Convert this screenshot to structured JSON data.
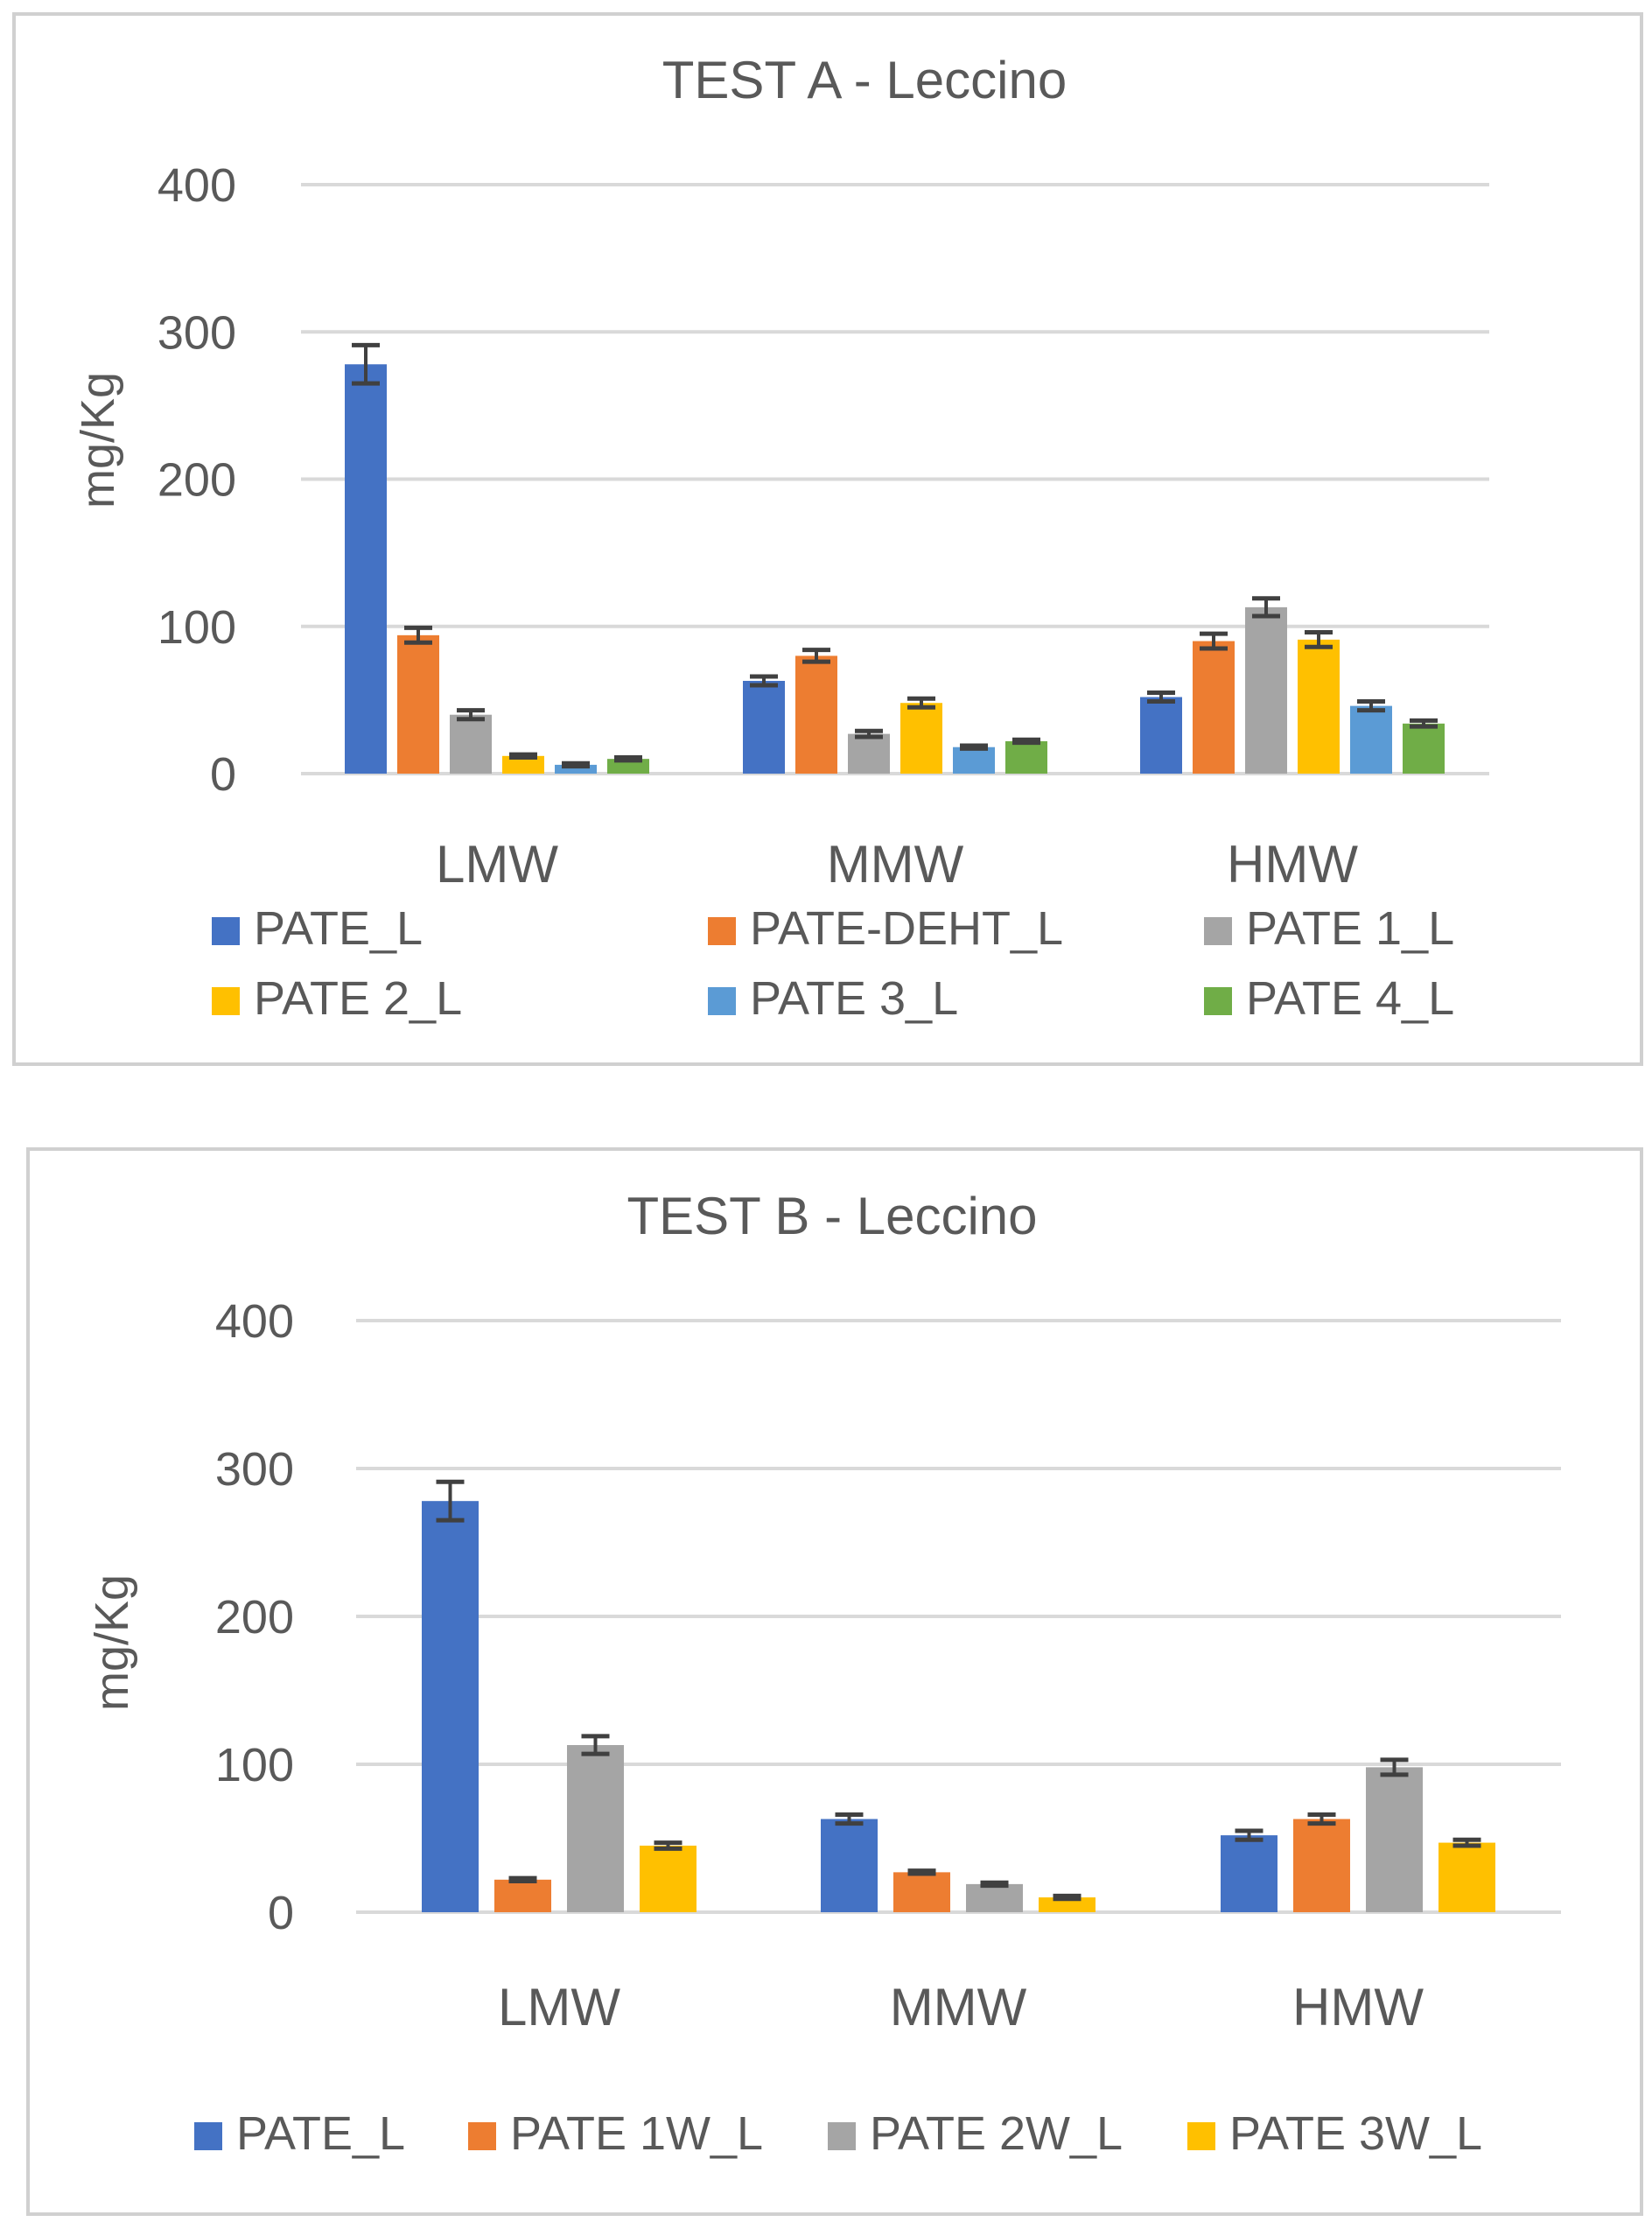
{
  "chart_data": [
    {
      "type": "bar",
      "title": "TEST A - Leccino",
      "xlabel": "",
      "ylabel": "mg/Kg",
      "ylim": [
        0,
        400
      ],
      "yticks": [
        "0",
        "100",
        "200",
        "300",
        "400"
      ],
      "grid": true,
      "legend_position": "bottom",
      "categories": [
        "LMW",
        "MMW",
        "HMW"
      ],
      "series": [
        {
          "name": "PATE_L",
          "color": "#4472C4",
          "values": [
            278,
            63,
            52
          ],
          "errors": [
            13,
            3,
            3
          ]
        },
        {
          "name": "PATE-DEHT_L",
          "color": "#ED7D31",
          "values": [
            94,
            80,
            90
          ],
          "errors": [
            5,
            4,
            5
          ]
        },
        {
          "name": "PATE 1_L",
          "color": "#A5A5A5",
          "values": [
            40,
            27,
            113
          ],
          "errors": [
            3,
            2,
            6
          ]
        },
        {
          "name": "PATE 2_L",
          "color": "#FFC000",
          "values": [
            12,
            48,
            91
          ],
          "errors": [
            1,
            3,
            5
          ]
        },
        {
          "name": "PATE 3_L",
          "color": "#5B9BD5",
          "values": [
            6,
            18,
            46
          ],
          "errors": [
            1,
            1,
            3
          ]
        },
        {
          "name": "PATE 4_L",
          "color": "#70AD47",
          "values": [
            10,
            22,
            34
          ],
          "errors": [
            1,
            1,
            2
          ]
        }
      ]
    },
    {
      "type": "bar",
      "title": "TEST B - Leccino",
      "xlabel": "",
      "ylabel": "mg/Kg",
      "ylim": [
        0,
        400
      ],
      "yticks": [
        "0",
        "100",
        "200",
        "300",
        "400"
      ],
      "grid": true,
      "legend_position": "bottom",
      "categories": [
        "LMW",
        "MMW",
        "HMW"
      ],
      "series": [
        {
          "name": "PATE_L",
          "color": "#4472C4",
          "values": [
            278,
            63,
            52
          ],
          "errors": [
            13,
            3,
            3
          ]
        },
        {
          "name": "PATE 1W_L",
          "color": "#ED7D31",
          "values": [
            22,
            27,
            63
          ],
          "errors": [
            1,
            1,
            3
          ]
        },
        {
          "name": "PATE 2W_L",
          "color": "#A5A5A5",
          "values": [
            113,
            19,
            98
          ],
          "errors": [
            6,
            1,
            5
          ]
        },
        {
          "name": "PATE 3W_L",
          "color": "#FFC000",
          "values": [
            45,
            10,
            47
          ],
          "errors": [
            2,
            1,
            2
          ]
        }
      ]
    }
  ]
}
